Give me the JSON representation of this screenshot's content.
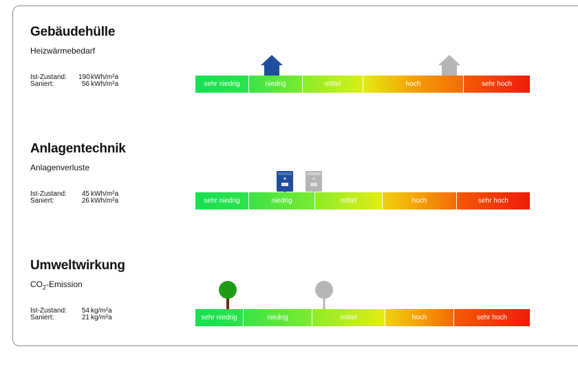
{
  "colors": {
    "gradient": [
      "#16e052",
      "#56ec3a",
      "#b5ee22",
      "#eceb12",
      "#f3b808",
      "#f46a06",
      "#ee1c0a"
    ],
    "current_marker": "#1f4e9c",
    "renovated_marker": "#b5b5b5",
    "tree_green": "#1e9c18",
    "tree_trunk": "#5e2e08"
  },
  "sections": [
    {
      "title": "Gebäudehülle",
      "subtitle": "Heizwärmebedarf",
      "current_label": "Ist-Zustand:",
      "current_value": "190",
      "current_unit": "kWh/m²a",
      "renovated_label": "Saniert:",
      "renovated_value": "56",
      "renovated_unit": "kWh/m²a",
      "icon_current": "house-icon",
      "icon_renovated": "house-icon",
      "scale": [
        "sehr niedrig",
        "niedrig",
        "mittel",
        "hoch",
        "sehr hoch"
      ]
    },
    {
      "title": "Anlagentechnik",
      "subtitle": "Anlagenverluste",
      "current_label": "Ist-Zustand:",
      "current_value": "45",
      "current_unit": "kWh/m²a",
      "renovated_label": "Saniert:",
      "renovated_value": "26",
      "renovated_unit": "kWh/m²a",
      "icon_current": "boiler-icon",
      "icon_renovated": "boiler-icon",
      "scale": [
        "sehr niedrig",
        "niedrig",
        "mittel",
        "hoch",
        "sehr hoch"
      ]
    },
    {
      "title": "Umweltwirkung",
      "subtitle_prefix": "CO",
      "subtitle_subscript": "2",
      "subtitle_suffix": "-Emission",
      "current_label": "Ist-Zustand:",
      "current_value": "54",
      "current_unit": "kg/m²a",
      "renovated_label": "Saniert:",
      "renovated_value": "21",
      "renovated_unit": "kg/m²a",
      "icon_current": "tree-icon",
      "icon_renovated": "tree-icon",
      "scale": [
        "sehr niedrig",
        "niedrig",
        "mittel",
        "hoch",
        "sehr hoch"
      ]
    }
  ]
}
